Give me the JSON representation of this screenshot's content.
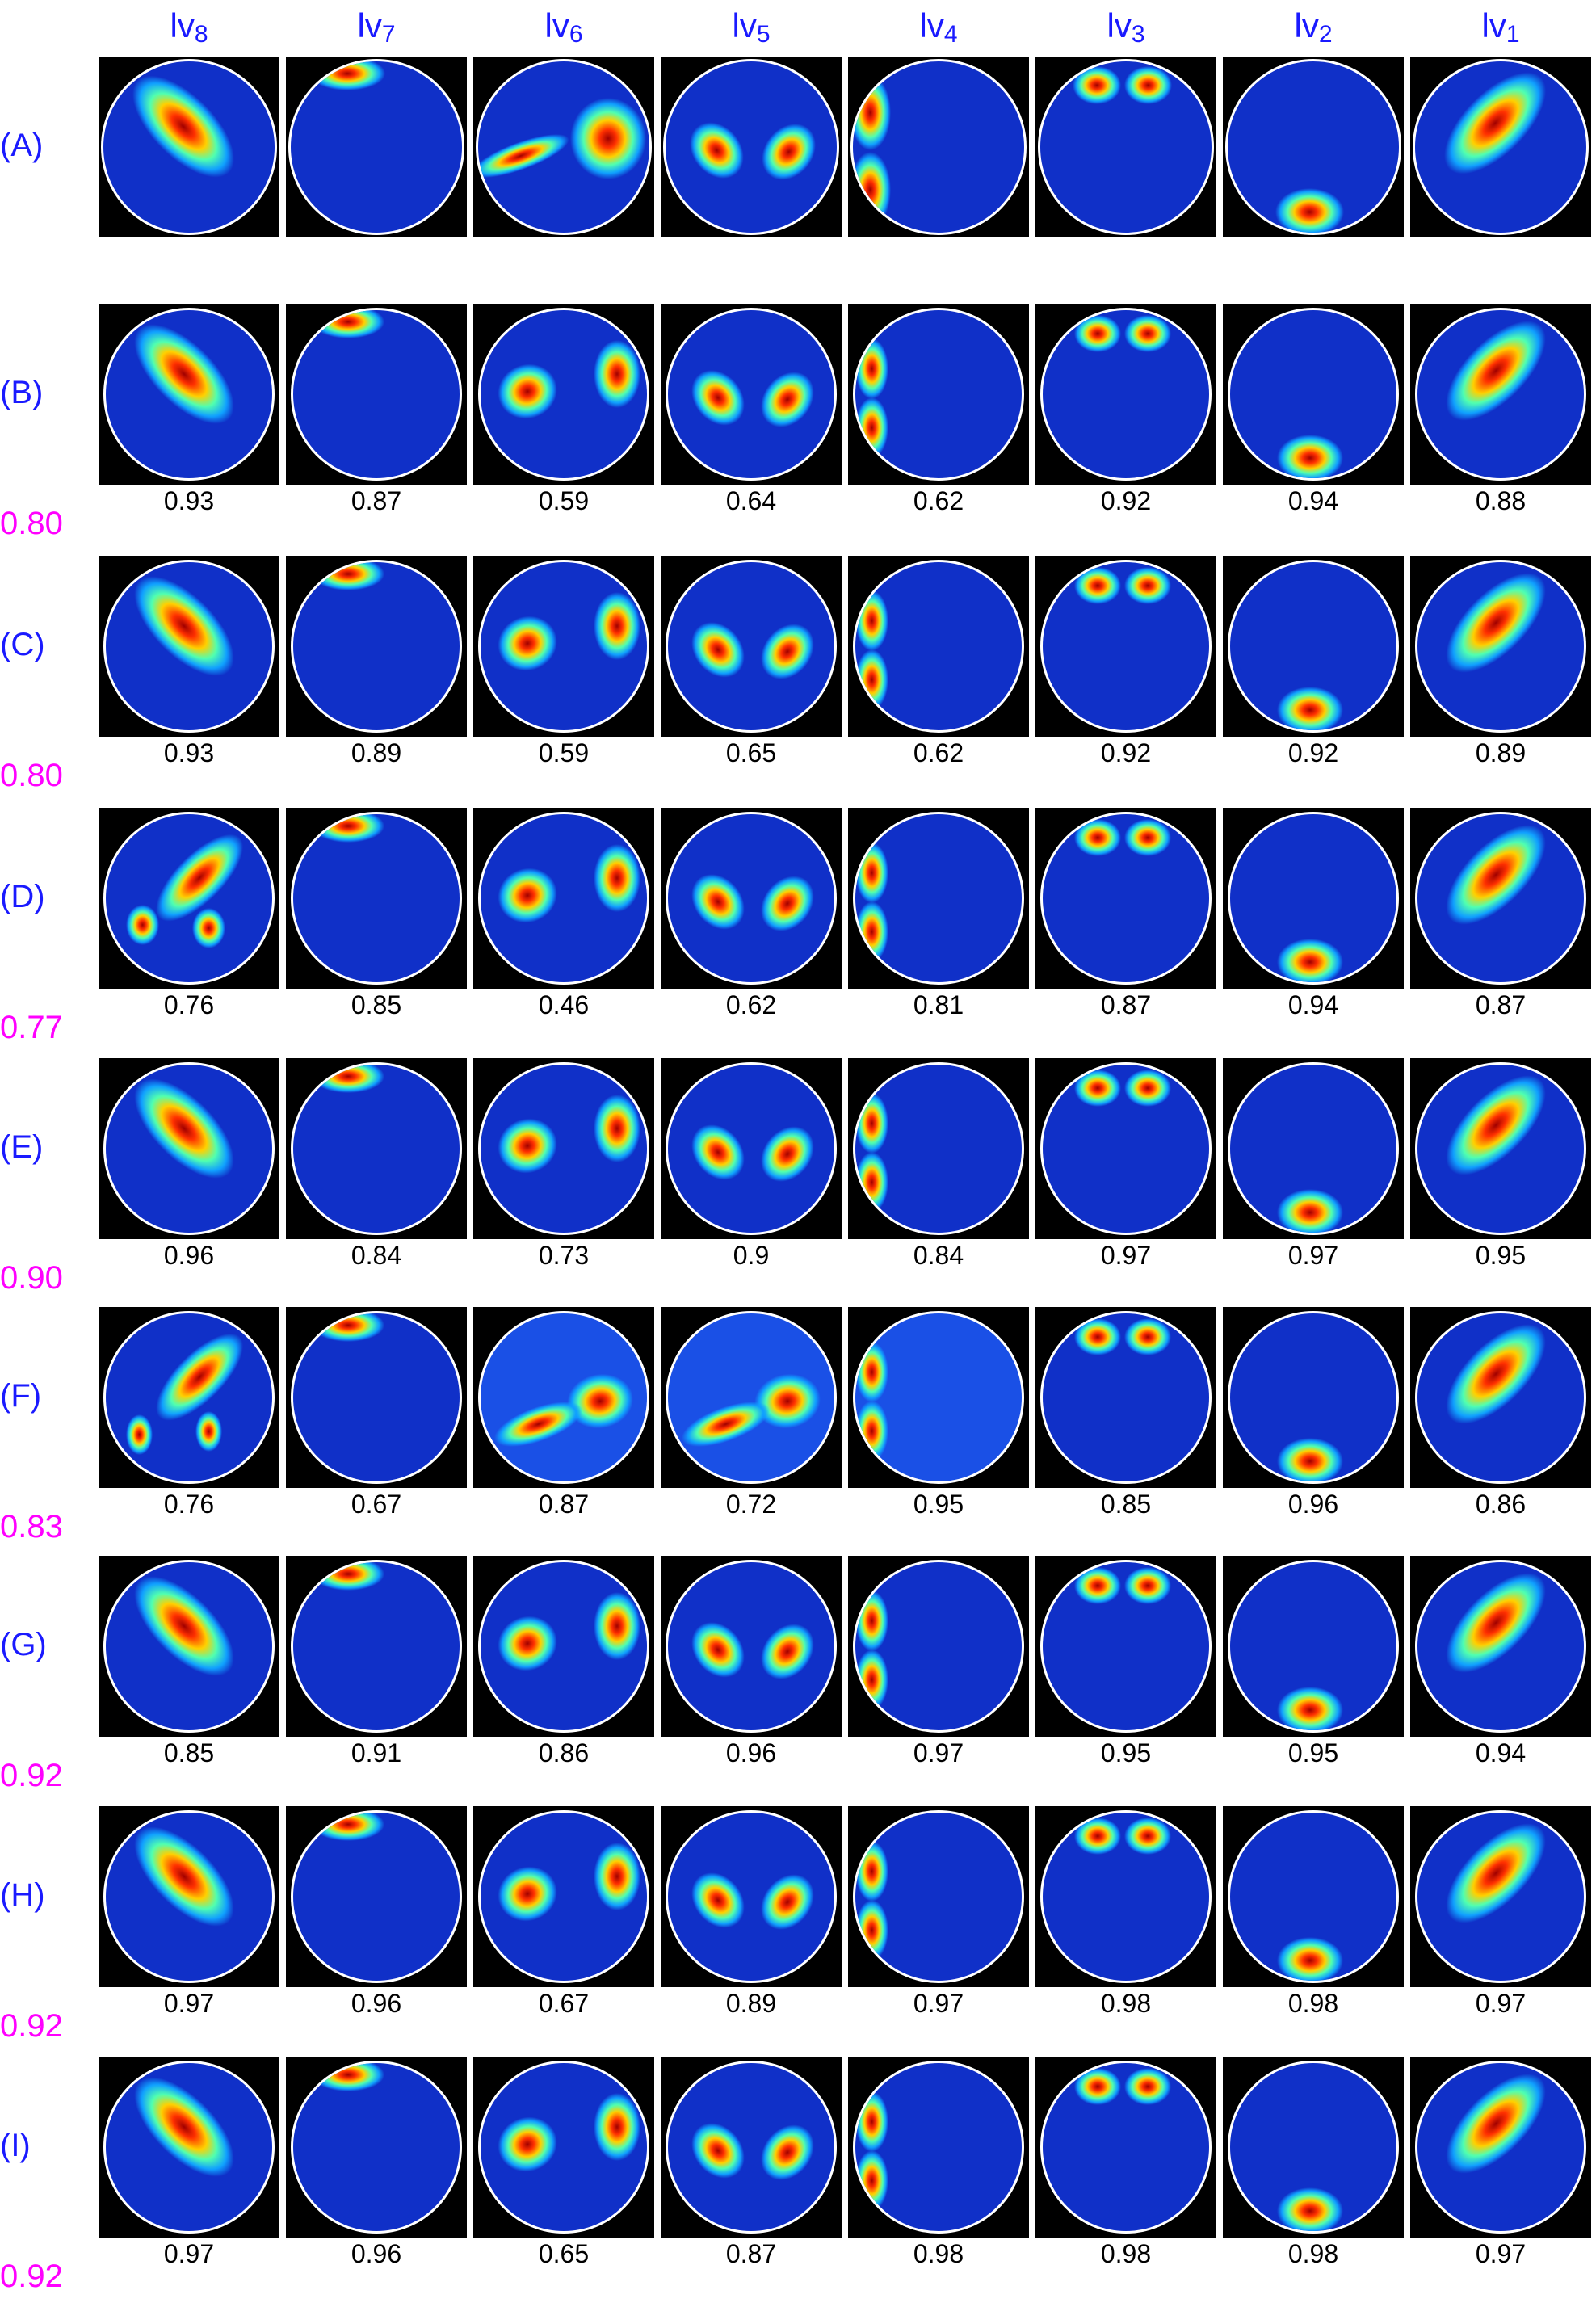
{
  "columns": [
    {
      "base": "lv",
      "sub": "8"
    },
    {
      "base": "lv",
      "sub": "7"
    },
    {
      "base": "lv",
      "sub": "6"
    },
    {
      "base": "lv",
      "sub": "5"
    },
    {
      "base": "lv",
      "sub": "4"
    },
    {
      "base": "lv",
      "sub": "3"
    },
    {
      "base": "lv",
      "sub": "2"
    },
    {
      "base": "lv",
      "sub": "1"
    }
  ],
  "rows": [
    {
      "label": "(A)",
      "scores": [],
      "average": ""
    },
    {
      "label": "(B)",
      "scores": [
        "0.93",
        "0.87",
        "0.59",
        "0.64",
        "0.62",
        "0.92",
        "0.94",
        "0.88"
      ],
      "average": "0.80"
    },
    {
      "label": "(C)",
      "scores": [
        "0.93",
        "0.89",
        "0.59",
        "0.65",
        "0.62",
        "0.92",
        "0.92",
        "0.89"
      ],
      "average": "0.80"
    },
    {
      "label": "(D)",
      "scores": [
        "0.76",
        "0.85",
        "0.46",
        "0.62",
        "0.81",
        "0.87",
        "0.94",
        "0.87"
      ],
      "average": "0.77"
    },
    {
      "label": "(E)",
      "scores": [
        "0.96",
        "0.84",
        "0.73",
        "0.9",
        "0.84",
        "0.97",
        "0.97",
        "0.95"
      ],
      "average": "0.90"
    },
    {
      "label": "(F)",
      "scores": [
        "0.76",
        "0.67",
        "0.87",
        "0.72",
        "0.95",
        "0.85",
        "0.96",
        "0.86"
      ],
      "average": "0.83"
    },
    {
      "label": "(G)",
      "scores": [
        "0.85",
        "0.91",
        "0.86",
        "0.96",
        "0.97",
        "0.95",
        "0.95",
        "0.94"
      ],
      "average": "0.92"
    },
    {
      "label": "(H)",
      "scores": [
        "0.97",
        "0.96",
        "0.67",
        "0.89",
        "0.97",
        "0.98",
        "0.98",
        "0.97"
      ],
      "average": "0.92"
    },
    {
      "label": "(I)",
      "scores": [
        "0.97",
        "0.96",
        "0.65",
        "0.87",
        "0.98",
        "0.98",
        "0.98",
        "0.97"
      ],
      "average": "0.92"
    }
  ],
  "colors": {
    "header_text": "#1a1aff",
    "row_label_text": "#1a1aff",
    "average_text": "#ff00ff",
    "score_text": "#000000",
    "panel_background": "#000000",
    "disk_background": "#1030c8",
    "disk_border": "#ffffff"
  }
}
